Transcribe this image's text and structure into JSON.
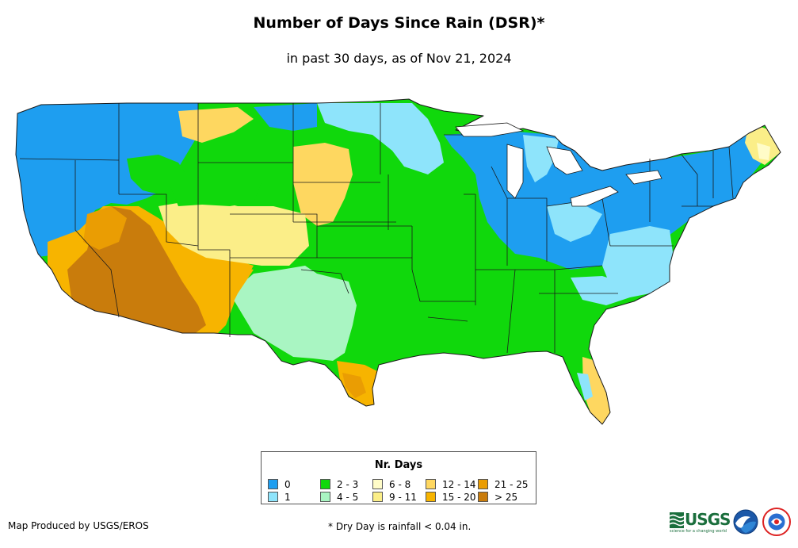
{
  "title": "Number of Days Since Rain (DSR)*",
  "subtitle": "in past 30 days, as of Nov 21, 2024",
  "legend": {
    "title": "Nr. Days",
    "items": [
      {
        "label": "0",
        "color": "#1e9ef0"
      },
      {
        "label": "1",
        "color": "#8ee4fb"
      },
      {
        "label": "2 - 3",
        "color": "#10d80c"
      },
      {
        "label": "4 - 5",
        "color": "#a9f5c2"
      },
      {
        "label": "6 - 8",
        "color": "#fffcc8"
      },
      {
        "label": "9 - 11",
        "color": "#fbee88"
      },
      {
        "label": "12 - 14",
        "color": "#fed760"
      },
      {
        "label": "15 - 20",
        "color": "#f7b400"
      },
      {
        "label": "21 - 25",
        "color": "#ea9d03"
      },
      {
        "label": "> 25",
        "color": "#c97c0c"
      }
    ]
  },
  "credit": "Map Produced by USGS/EROS",
  "footnote": "* Dry Day is rainfall < 0.04 in.",
  "logos": {
    "usgs_word": "USGS",
    "usgs_tag": "science for a changing world"
  }
}
